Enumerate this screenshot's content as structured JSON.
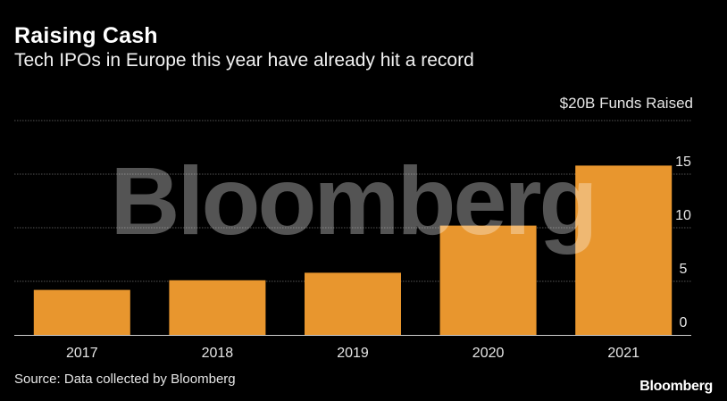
{
  "header": {
    "title": "Raising Cash",
    "subtitle": "Tech IPOs in Europe this year have already hit a record"
  },
  "footer": {
    "source": "Source: Data collected by Bloomberg",
    "logo": "Bloomberg"
  },
  "watermark": "Bloomberg",
  "colors": {
    "background": "#000000",
    "bar": "#E8962E",
    "grid": "#555555",
    "watermark": "#ffffff"
  },
  "chart_data": {
    "type": "bar",
    "title": "Raising Cash",
    "subtitle": "Tech IPOs in Europe this year have already hit a record",
    "ylabel": "$20B Funds Raised",
    "xlabel": "",
    "categories": [
      "2017",
      "2018",
      "2019",
      "2020",
      "2021"
    ],
    "values": [
      4.2,
      5.1,
      5.8,
      10.2,
      15.8
    ],
    "ylim": [
      0,
      20
    ],
    "yticks": [
      0,
      5,
      10,
      15
    ],
    "grid": true,
    "y_axis_position": "right"
  }
}
